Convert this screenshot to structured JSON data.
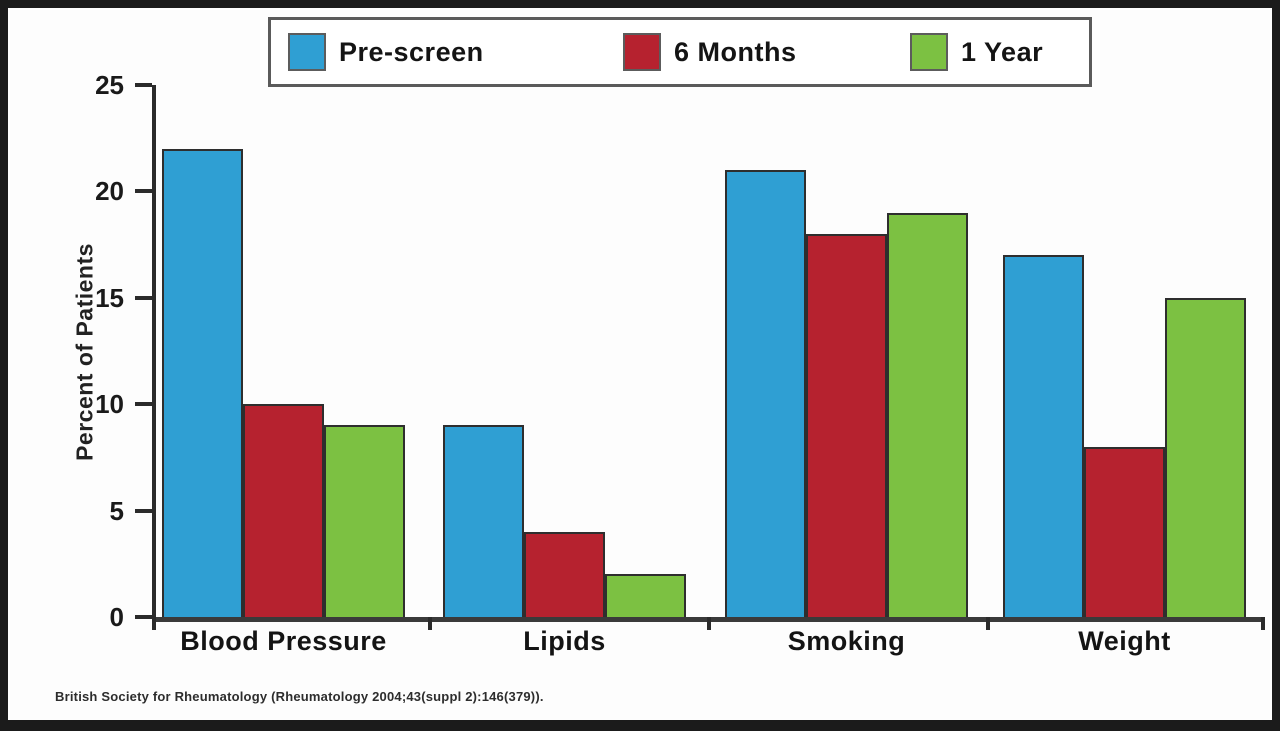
{
  "chart_data": {
    "type": "bar",
    "categories": [
      "Blood Pressure",
      "Lipids",
      "Smoking",
      "Weight"
    ],
    "series": [
      {
        "name": "Pre-screen",
        "color": "#2f9fd3",
        "values": [
          22,
          9,
          21,
          17
        ]
      },
      {
        "name": "6 Months",
        "color": "#b6222f",
        "values": [
          10,
          4,
          18,
          8
        ]
      },
      {
        "name": "1 Year",
        "color": "#7cc142",
        "values": [
          9,
          2,
          19,
          15
        ]
      }
    ],
    "title": "",
    "xlabel": "",
    "ylabel": "Percent of Patients",
    "ylim": [
      0,
      25
    ],
    "yticks": [
      0,
      5,
      10,
      15,
      20,
      25
    ],
    "grid": false,
    "legend_position": "top"
  },
  "footnote": {
    "text": "British Society for Rheumatology (Rheumatology 2004;43(suppl 2):146(379))."
  }
}
